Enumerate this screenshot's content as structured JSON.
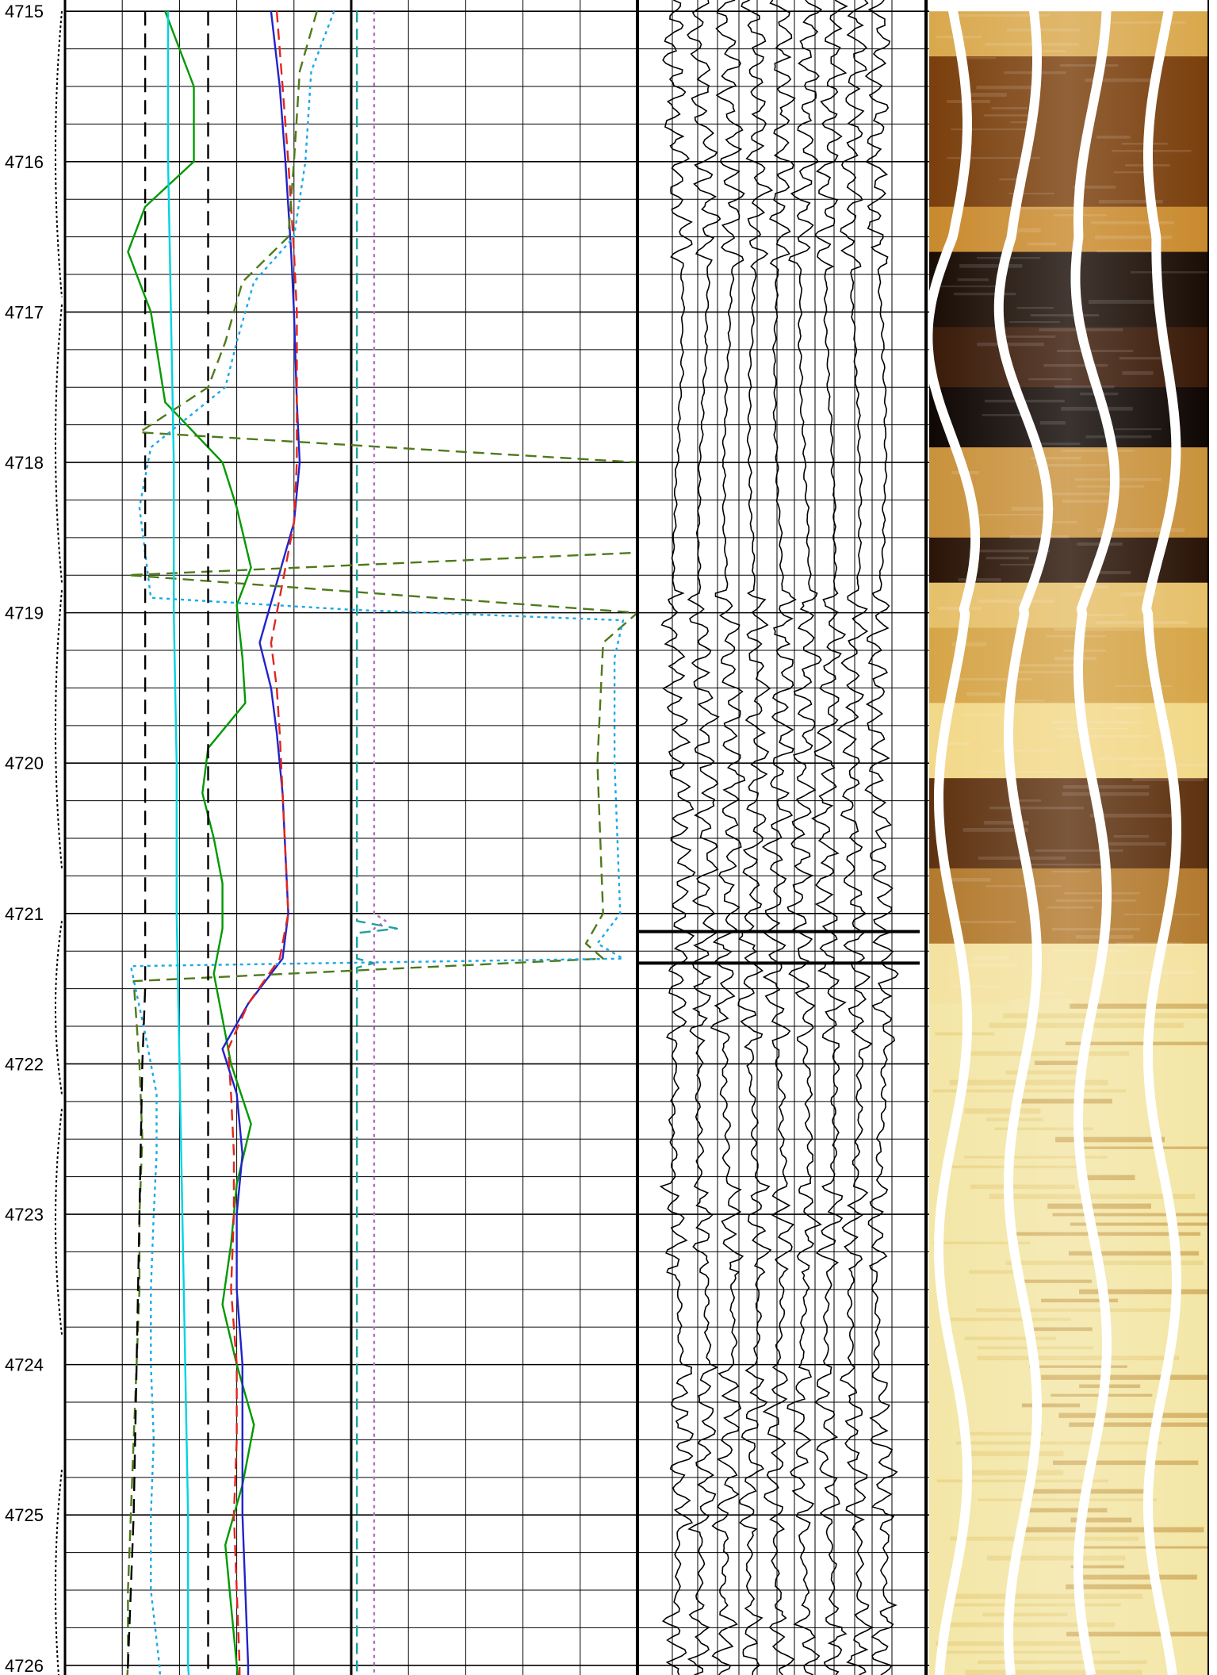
{
  "chart_data": {
    "type": "line",
    "depth_axis": {
      "ticks": [
        4715,
        4716,
        4717,
        4718,
        4719,
        4720,
        4721,
        4722,
        4723,
        4724,
        4725,
        4726
      ],
      "range": [
        4715,
        4726.3
      ]
    },
    "tracks": [
      {
        "id": "track1",
        "grid": {
          "vertical_lines": 10,
          "scale": "linear"
        },
        "series": [
          {
            "color": "#009900",
            "dash": "solid",
            "points": [
              [
                4715,
                0.35
              ],
              [
                4715.5,
                0.45
              ],
              [
                4716.0,
                0.45
              ],
              [
                4716.3,
                0.28
              ],
              [
                4716.6,
                0.22
              ],
              [
                4717.0,
                0.3
              ],
              [
                4717.6,
                0.35
              ],
              [
                4718.0,
                0.55
              ],
              [
                4718.3,
                0.6
              ],
              [
                4718.7,
                0.65
              ],
              [
                4718.95,
                0.6
              ],
              [
                4719.3,
                0.62
              ],
              [
                4719.6,
                0.63
              ],
              [
                4719.9,
                0.5
              ],
              [
                4720.2,
                0.48
              ],
              [
                4720.5,
                0.52
              ],
              [
                4720.8,
                0.55
              ],
              [
                4721.1,
                0.55
              ],
              [
                4721.4,
                0.52
              ],
              [
                4721.7,
                0.55
              ],
              [
                4722.0,
                0.58
              ],
              [
                4722.4,
                0.65
              ],
              [
                4722.8,
                0.6
              ],
              [
                4723.2,
                0.58
              ],
              [
                4723.6,
                0.55
              ],
              [
                4724.0,
                0.6
              ],
              [
                4724.4,
                0.66
              ],
              [
                4724.8,
                0.62
              ],
              [
                4725.2,
                0.56
              ],
              [
                4725.6,
                0.58
              ],
              [
                4726.0,
                0.6
              ],
              [
                4726.3,
                0.62
              ]
            ]
          },
          {
            "color": "#2222cc",
            "dash": "solid",
            "points": [
              [
                4715,
                0.72
              ],
              [
                4715.5,
                0.75
              ],
              [
                4716.0,
                0.77
              ],
              [
                4716.6,
                0.79
              ],
              [
                4717.0,
                0.8
              ],
              [
                4717.6,
                0.81
              ],
              [
                4718.0,
                0.82
              ],
              [
                4718.4,
                0.8
              ],
              [
                4718.8,
                0.74
              ],
              [
                4719.2,
                0.68
              ],
              [
                4719.5,
                0.72
              ],
              [
                4719.8,
                0.74
              ],
              [
                4720.2,
                0.76
              ],
              [
                4720.6,
                0.77
              ],
              [
                4721.0,
                0.78
              ],
              [
                4721.3,
                0.76
              ],
              [
                4721.6,
                0.64
              ],
              [
                4721.9,
                0.55
              ],
              [
                4722.2,
                0.6
              ],
              [
                4722.6,
                0.62
              ],
              [
                4723.0,
                0.6
              ],
              [
                4723.5,
                0.6
              ],
              [
                4724.0,
                0.62
              ],
              [
                4724.5,
                0.62
              ],
              [
                4725.0,
                0.62
              ],
              [
                4725.5,
                0.63
              ],
              [
                4726.0,
                0.64
              ],
              [
                4726.3,
                0.64
              ]
            ]
          },
          {
            "color": "#e0261d",
            "dash": "dashed",
            "points": [
              [
                4715,
                0.74
              ],
              [
                4715.5,
                0.76
              ],
              [
                4716.0,
                0.78
              ],
              [
                4716.6,
                0.8
              ],
              [
                4717.0,
                0.81
              ],
              [
                4717.6,
                0.81
              ],
              [
                4718.0,
                0.81
              ],
              [
                4718.4,
                0.8
              ],
              [
                4718.8,
                0.76
              ],
              [
                4719.2,
                0.72
              ],
              [
                4719.5,
                0.74
              ],
              [
                4719.8,
                0.75
              ],
              [
                4720.2,
                0.76
              ],
              [
                4720.6,
                0.77
              ],
              [
                4721.0,
                0.78
              ],
              [
                4721.3,
                0.75
              ],
              [
                4721.6,
                0.64
              ],
              [
                4721.9,
                0.57
              ],
              [
                4722.2,
                0.58
              ],
              [
                4722.6,
                0.59
              ],
              [
                4723.0,
                0.59
              ],
              [
                4723.5,
                0.58
              ],
              [
                4724.0,
                0.6
              ],
              [
                4724.5,
                0.6
              ],
              [
                4725.0,
                0.59
              ],
              [
                4725.5,
                0.6
              ],
              [
                4726.0,
                0.61
              ],
              [
                4726.3,
                0.61
              ]
            ]
          },
          {
            "color": "#4d7a1a",
            "dash": "dashed",
            "points": [
              [
                4715,
                0.88
              ],
              [
                4715.4,
                0.82
              ],
              [
                4716.0,
                0.8
              ],
              [
                4716.5,
                0.78
              ],
              [
                4716.8,
                0.62
              ],
              [
                4717.2,
                0.56
              ],
              [
                4717.5,
                0.5
              ],
              [
                4717.8,
                0.26
              ],
              [
                4718.0,
                2.0
              ],
              [
                4718.6,
                2.0
              ],
              [
                4718.75,
                0.22
              ],
              [
                4719.0,
                2.0
              ],
              [
                4719.2,
                1.88
              ],
              [
                4720.0,
                1.86
              ],
              [
                4721.0,
                1.88
              ],
              [
                4721.2,
                1.82
              ],
              [
                4721.3,
                1.88
              ],
              [
                4721.45,
                0.24
              ],
              [
                4722.0,
                0.26
              ],
              [
                4722.5,
                0.27
              ],
              [
                4723.0,
                0.26
              ],
              [
                4723.5,
                0.26
              ],
              [
                4724.0,
                0.25
              ],
              [
                4724.5,
                0.24
              ],
              [
                4725.0,
                0.23
              ],
              [
                4725.5,
                0.22
              ],
              [
                4726.0,
                0.22
              ],
              [
                4726.3,
                0.21
              ]
            ]
          },
          {
            "color": "#1aa8e8",
            "dash": "dotted",
            "points": [
              [
                4715,
                0.94
              ],
              [
                4715.4,
                0.86
              ],
              [
                4716.0,
                0.84
              ],
              [
                4716.5,
                0.8
              ],
              [
                4716.8,
                0.66
              ],
              [
                4717.2,
                0.6
              ],
              [
                4717.5,
                0.56
              ],
              [
                4717.9,
                0.3
              ],
              [
                4718.3,
                0.26
              ],
              [
                4718.9,
                0.3
              ],
              [
                4718.98,
                1.0
              ],
              [
                4719.05,
                1.95
              ],
              [
                4719.3,
                1.92
              ],
              [
                4720.0,
                1.92
              ],
              [
                4721.0,
                1.94
              ],
              [
                4721.2,
                1.86
              ],
              [
                4721.3,
                1.95
              ],
              [
                4721.35,
                0.23
              ],
              [
                4721.8,
                0.28
              ],
              [
                4722.2,
                0.32
              ],
              [
                4722.6,
                0.32
              ],
              [
                4723.0,
                0.31
              ],
              [
                4723.5,
                0.3
              ],
              [
                4724.0,
                0.3
              ],
              [
                4724.5,
                0.31
              ],
              [
                4725.0,
                0.3
              ],
              [
                4725.5,
                0.3
              ],
              [
                4726.0,
                0.33
              ],
              [
                4726.3,
                0.34
              ]
            ]
          },
          {
            "color": "#00d4e0",
            "dash": "solid",
            "points": [
              [
                4715,
                0.36
              ],
              [
                4716.0,
                0.36
              ],
              [
                4717.0,
                0.37
              ],
              [
                4718.0,
                0.38
              ],
              [
                4719.0,
                0.38
              ],
              [
                4720.0,
                0.39
              ],
              [
                4721.0,
                0.39
              ],
              [
                4722.0,
                0.4
              ],
              [
                4723.0,
                0.41
              ],
              [
                4724.0,
                0.42
              ],
              [
                4725.0,
                0.43
              ],
              [
                4726.0,
                0.43
              ],
              [
                4726.3,
                0.44
              ]
            ]
          },
          {
            "color": "#000000",
            "dash": "longdash",
            "points": [
              [
                4715,
                0.28
              ],
              [
                4716.0,
                0.28
              ],
              [
                4717.0,
                0.28
              ],
              [
                4718.0,
                0.28
              ],
              [
                4719.0,
                0.28
              ],
              [
                4720.0,
                0.28
              ],
              [
                4721.0,
                0.28
              ],
              [
                4721.5,
                0.28
              ],
              [
                4722.0,
                0.27
              ],
              [
                4723.0,
                0.26
              ],
              [
                4724.0,
                0.25
              ],
              [
                4725.0,
                0.24
              ],
              [
                4726.0,
                0.22
              ],
              [
                4726.3,
                0.21
              ]
            ]
          },
          {
            "color": "#000000",
            "dash": "longdash",
            "points": [
              [
                4715,
                0.5
              ],
              [
                4726.3,
                0.5
              ]
            ]
          },
          {
            "color": "#1fa0a0",
            "dash": "dashed",
            "points": [
              [
                4715,
                1.02
              ],
              [
                4721.05,
                1.02
              ],
              [
                4721.1,
                1.16
              ],
              [
                4721.13,
                1.02
              ],
              [
                4721.3,
                1.02
              ],
              [
                4721.33,
                1.08
              ],
              [
                4721.36,
                1.02
              ],
              [
                4726.3,
                1.02
              ]
            ]
          },
          {
            "color": "#b070c0",
            "dash": "dotted",
            "points": [
              [
                4715,
                1.08
              ],
              [
                4721.0,
                1.08
              ],
              [
                4721.05,
                1.12
              ],
              [
                4721.1,
                1.08
              ],
              [
                4726.3,
                1.08
              ]
            ]
          }
        ]
      },
      {
        "id": "track2",
        "description": "waveform traces",
        "trace_count": 9,
        "markers": [
          4721.12,
          4721.33
        ]
      },
      {
        "id": "track3",
        "description": "borehole image",
        "sinusoid_count": 4
      }
    ]
  }
}
